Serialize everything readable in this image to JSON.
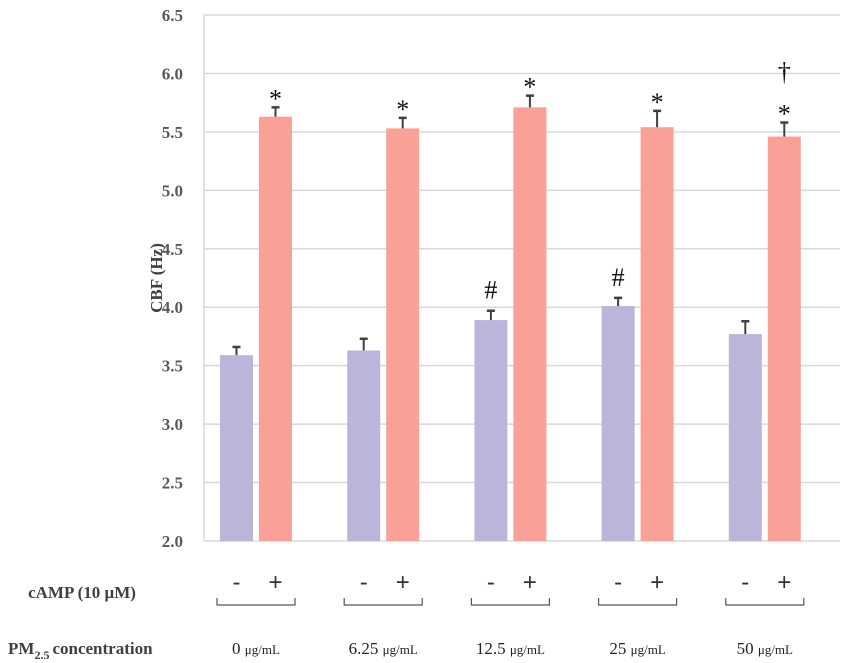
{
  "chart_data": {
    "type": "bar",
    "title": "",
    "ylabel": "CBF (Hz)",
    "xlabel": "PM2.5 concentration",
    "ylim": [
      2.0,
      6.5
    ],
    "yticks": [
      "2.0",
      "2.5",
      "3.0",
      "3.5",
      "4.0",
      "4.5",
      "5.0",
      "5.5",
      "6.0",
      "6.5"
    ],
    "grid": true,
    "categories": [
      {
        "value": "0",
        "unit": "μg/mL"
      },
      {
        "value": "6.25",
        "unit": "μg/mL"
      },
      {
        "value": "12.5",
        "unit": "μg/mL"
      },
      {
        "value": "25",
        "unit": "μg/mL"
      },
      {
        "value": "50",
        "unit": "μg/mL"
      }
    ],
    "series": [
      {
        "name": "-",
        "color": "#bcb5db",
        "values": [
          3.59,
          3.63,
          3.89,
          4.01,
          3.77
        ],
        "errors": [
          0.07,
          0.1,
          0.08,
          0.07,
          0.11
        ],
        "annotations": [
          "",
          "",
          "#",
          "#",
          ""
        ]
      },
      {
        "name": "+",
        "color": "#f9a196",
        "values": [
          5.63,
          5.53,
          5.71,
          5.54,
          5.46
        ],
        "errors": [
          0.08,
          0.09,
          0.1,
          0.14,
          0.12
        ],
        "annotations": [
          "*",
          "*",
          "*",
          "*",
          "*"
        ],
        "annotations2": [
          "",
          "",
          "",
          "",
          "†"
        ]
      }
    ],
    "row_labels": {
      "camp": "cAMP (10 μM)",
      "pm_main": "PM",
      "pm_sub": "2.5",
      "pm_rest": "concentration"
    }
  }
}
